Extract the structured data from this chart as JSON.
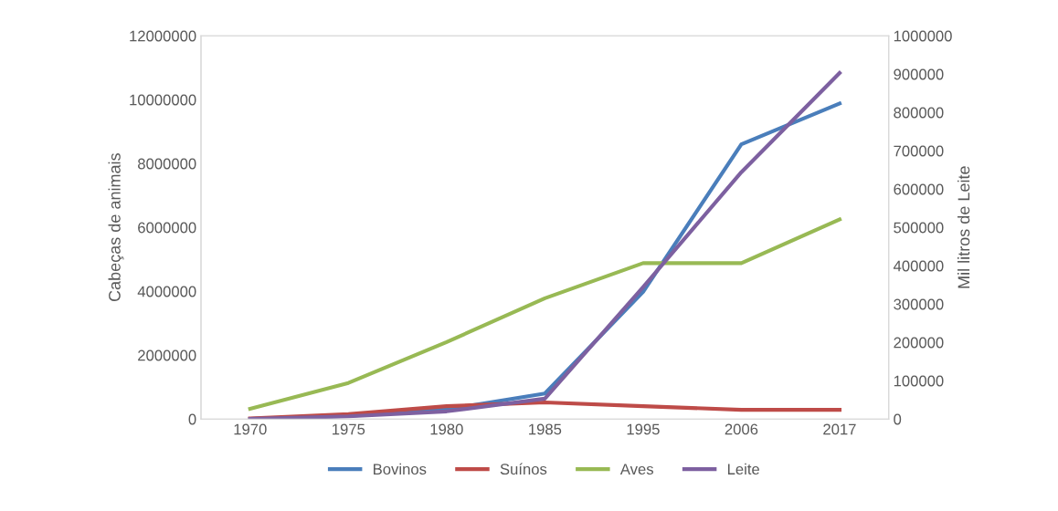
{
  "chart_data": {
    "type": "line",
    "categories": [
      "1970",
      "1975",
      "1980",
      "1985",
      "1995",
      "2006",
      "2017"
    ],
    "ylabel": "Cabeças de animais",
    "y2label": "Mil litros de Leite",
    "ylim": [
      0,
      12000000
    ],
    "yticks": [
      0,
      2000000,
      4000000,
      6000000,
      8000000,
      10000000,
      12000000
    ],
    "y2lim": [
      0,
      1000000
    ],
    "y2ticks": [
      0,
      100000,
      200000,
      300000,
      400000,
      500000,
      600000,
      700000,
      800000,
      900000,
      1000000
    ],
    "legend": "bottom",
    "grid": false,
    "marker": "none",
    "line_style": "solid",
    "series": [
      {
        "name": "Bovinos",
        "color": "#4a7ebb",
        "values": [
          0,
          100000,
          300000,
          800000,
          3980000,
          8600000,
          9880000
        ]
      },
      {
        "name": "Suínos",
        "color": "#be4b48",
        "values": [
          20000,
          150000,
          400000,
          520000,
          400000,
          290000,
          290000
        ]
      },
      {
        "name": "Aves",
        "color": "#98b954",
        "values": [
          320000,
          1130000,
          2410000,
          3780000,
          4880000,
          4880000,
          6250000
        ]
      },
      {
        "name": "Leite",
        "color": "#7d60a0",
        "axis": "y2",
        "values": [
          0,
          7000,
          20000,
          53000,
          344000,
          644000,
          903000
        ]
      }
    ]
  }
}
